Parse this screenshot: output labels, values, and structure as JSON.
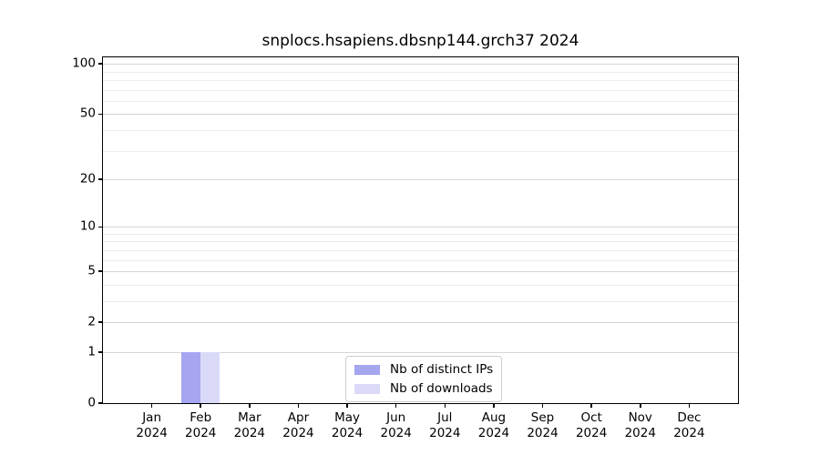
{
  "title": "snplocs.hsapiens.dbsnp144.grch37 2024",
  "chart_data": {
    "type": "bar",
    "title": "snplocs.hsapiens.dbsnp144.grch37 2024",
    "xlabel": "",
    "ylabel": "",
    "categories": [
      "Jan 2024",
      "Feb 2024",
      "Mar 2024",
      "Apr 2024",
      "May 2024",
      "Jun 2024",
      "Jul 2024",
      "Aug 2024",
      "Sep 2024",
      "Oct 2024",
      "Nov 2024",
      "Dec 2024"
    ],
    "series": [
      {
        "name": "Nb of distinct IPs",
        "color": "#a5a5f0",
        "values": [
          0,
          1,
          0,
          0,
          0,
          0,
          0,
          0,
          0,
          0,
          0,
          0
        ]
      },
      {
        "name": "Nb of downloads",
        "color": "#dadaf8",
        "values": [
          0,
          1,
          0,
          0,
          0,
          0,
          0,
          0,
          0,
          0,
          0,
          0
        ]
      }
    ],
    "yscale": "log1p",
    "ylim": [
      0,
      110
    ],
    "yticks_major": [
      0,
      1,
      2,
      5,
      10,
      20,
      50,
      100
    ],
    "yticks_minor": [
      3,
      4,
      6,
      7,
      8,
      9,
      30,
      40,
      60,
      70,
      80,
      90
    ],
    "grid": "horizontal",
    "legend_position": "inside-bottom-center"
  },
  "colors": {
    "grid_major": "#d6d6d6",
    "grid_minor": "#ececec",
    "axis": "#000000",
    "background": "#ffffff"
  }
}
